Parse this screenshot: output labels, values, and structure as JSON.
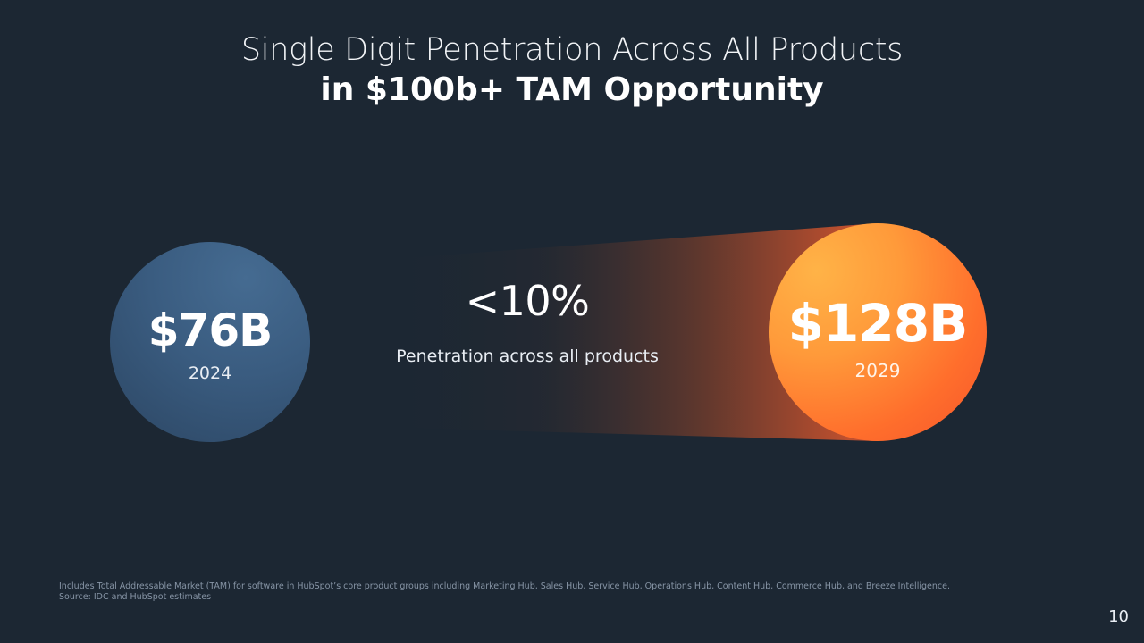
{
  "title": {
    "line1": "Single Digit Penetration Across All Products",
    "line2": "in $100b+ TAM Opportunity"
  },
  "left_circle": {
    "value": "$76B",
    "year": "2024",
    "color": "#3a5c80"
  },
  "center": {
    "percentage": "<10%",
    "label": "Penetration across all products"
  },
  "right_circle": {
    "value": "$128B",
    "year": "2029",
    "color": "#ff7a2f"
  },
  "footnote": {
    "line1": "Includes Total Addressable Market (TAM) for software in HubSpot’s core product groups including Marketing Hub, Sales Hub, Service Hub, Operations Hub, Content Hub, Commerce Hub, and Breeze Intelligence.",
    "line2": "Source: IDC and HubSpot estimates"
  },
  "page_number": "10"
}
